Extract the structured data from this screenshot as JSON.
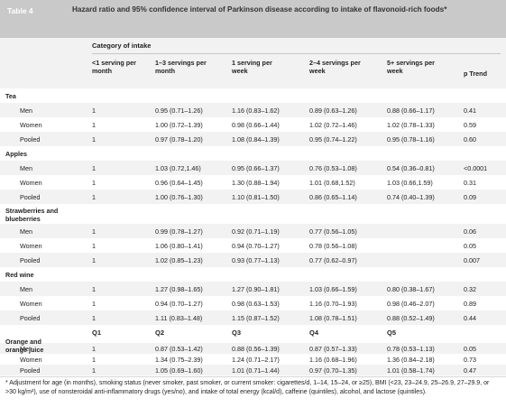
{
  "table_label": "Table 4",
  "title": "Hazard ratio and 95% confidence interval of Parkinson disease according to intake of flavonoid-rich foods*",
  "category_title": "Category of intake",
  "columns": [
    "<1 serving per month",
    "1–3 servings per month",
    "1 serving per week",
    "2–4 servings per week",
    "5+ servings per week"
  ],
  "p_trend_label": "p Trend",
  "groups": [
    {
      "name": "Tea",
      "rows": [
        {
          "label": "Men",
          "values": [
            "1",
            "0.95 (0.71–1.26)",
            "1.16 (0.83–1.62)",
            "0.89 (0.63–1.26)",
            "0.88 (0.66–1.17)"
          ],
          "p": "0.41"
        },
        {
          "label": "Women",
          "values": [
            "1",
            "1.00 (0.72–1.39)",
            "0.98 (0.66–1.44)",
            "1.02 (0.72–1.46)",
            "1.02 (0.78–1.33)"
          ],
          "p": "0.59"
        },
        {
          "label": "Pooled",
          "values": [
            "1",
            "0.97 (0.78–1.20)",
            "1.08 (0.84–1.39)",
            "0.95 (0.74–1.22)",
            "0.95 (0.78–1.16)"
          ],
          "p": "0.60"
        }
      ]
    },
    {
      "name": "Apples",
      "rows": [
        {
          "label": "Men",
          "values": [
            "1",
            "1.03 (0.72,1.46)",
            "0.95 (0.66–1.37)",
            "0.76 (0.53–1.08)",
            "0.54 (0.36–0.81)"
          ],
          "p": "<0.0001"
        },
        {
          "label": "Women",
          "values": [
            "1",
            "0.96 (0.64–1.45)",
            "1.30 (0.88–1.94)",
            "1.01 (0.68,1.52)",
            "1.03 (0.66,1.59)"
          ],
          "p": "0.31"
        },
        {
          "label": "Pooled",
          "values": [
            "1",
            "1.00 (0.76–1.30)",
            "1.10 (0.81–1.50)",
            "0.86 (0.65–1.14)",
            "0.74 (0.40–1.39)"
          ],
          "p": "0.09"
        }
      ]
    },
    {
      "name": "Strawberries and blueberries",
      "rows": [
        {
          "label": "Men",
          "values": [
            "1",
            "0.99 (0.78–1.27)",
            "0.92 (0.71–1.19)",
            "0.77 (0.56–1.05)",
            ""
          ],
          "p": "0.06"
        },
        {
          "label": "Women",
          "values": [
            "1",
            "1.06 (0.80–1.41)",
            "0.94 (0.70–1.27)",
            "0.78 (0.56–1.08)",
            ""
          ],
          "p": "0.05"
        },
        {
          "label": "Pooled",
          "values": [
            "1",
            "1.02 (0.85–1.23)",
            "0.93 (0.77–1.13)",
            "0.77 (0.62–0.97)",
            ""
          ],
          "p": "0.007"
        }
      ]
    },
    {
      "name": "Red wine",
      "rows": [
        {
          "label": "Men",
          "values": [
            "1",
            "1.27 (0.98–1.65)",
            "1.27 (0.90–1.81)",
            "1.03 (0.66–1.59)",
            "0.80 (0.38–1.67)"
          ],
          "p": "0.32"
        },
        {
          "label": "Women",
          "values": [
            "1",
            "0.94 (0.70–1.27)",
            "0.98 (0.63–1.53)",
            "1.16 (0.70–1.93)",
            "0.98 (0.46–2.07)"
          ],
          "p": "0.89"
        },
        {
          "label": "Pooled",
          "values": [
            "1",
            "1.11 (0.83–1.48)",
            "1.15 (0.87–1.52)",
            "1.08 (0.78–1.51)",
            "0.88 (0.52–1.49)"
          ],
          "p": "0.44"
        }
      ]
    },
    {
      "name": "Orange and orange juice",
      "rows": [
        {
          "label": "Men",
          "values": [
            "1",
            "0.87 (0.53–1.42)",
            "0.88 (0.56–1.39)",
            "0.87 (0.57–1.33)",
            "0.78 (0.53–1.13)"
          ],
          "p": "0.05"
        },
        {
          "label": "Women",
          "values": [
            "1",
            "1.34 (0.75–2.39)",
            "1.24 (0.71–2.17)",
            "1.16 (0.68–1.96)",
            "1.36 (0.84–2.18)"
          ],
          "p": "0.73"
        },
        {
          "label": "Pooled",
          "values": [
            "1",
            "1.05 (0.69–1.60)",
            "1.01 (0.71–1.44)",
            "0.97 (0.70–1.35)",
            "1.01 (0.58–1.74)"
          ],
          "p": "0.47"
        }
      ]
    }
  ],
  "quintile_labels": [
    "Q1",
    "Q2",
    "Q3",
    "Q4",
    "Q5"
  ],
  "footnote": "* Adjustment for age (in months), smoking status (never smoker, past smoker, or current smoker: cigarettes/d, 1–14, 15–24, or ≥25), BMI (<23, 23–24.9, 25–26.9, 27–29.9, or >30 kg/m²), use of nonsteroidal anti-inflammatory drugs (yes/no), and intake of total energy (kcal/d), caffeine (quintiles), alcohol, and lactose (quintiles)."
}
